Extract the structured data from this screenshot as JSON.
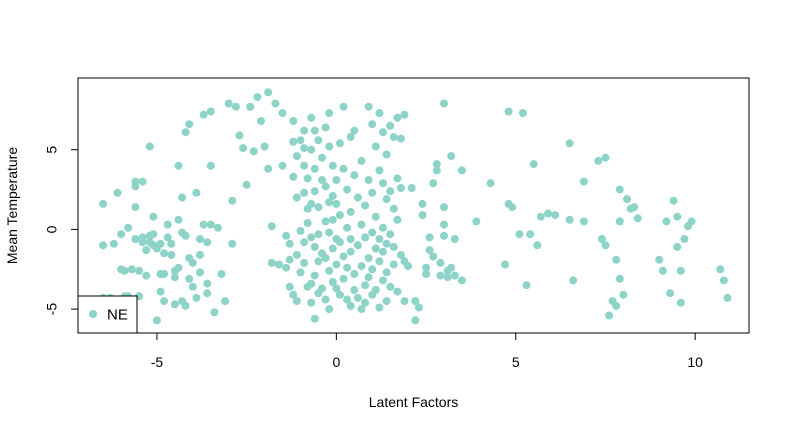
{
  "chart_data": {
    "type": "scatter",
    "title": "",
    "xlabel": "Latent Factors",
    "ylabel": "Mean Temperature",
    "xlim": [
      -7.2,
      11.5
    ],
    "ylim": [
      -6.5,
      9.5
    ],
    "xticks": [
      -5,
      0,
      5,
      10
    ],
    "yticks": [
      -5,
      0,
      5
    ],
    "grid": false,
    "legend": {
      "position": "bottom-left",
      "entries": [
        "NE"
      ]
    },
    "series": [
      {
        "name": "NE",
        "color": "#8dd3c7",
        "points": [
          [
            -6.5,
            1.6
          ],
          [
            -6.5,
            -1.0
          ],
          [
            -6.3,
            -4.3
          ],
          [
            -6.2,
            -0.9
          ],
          [
            -6.1,
            2.3
          ],
          [
            -6.0,
            -2.5
          ],
          [
            -6.0,
            -0.3
          ],
          [
            -5.9,
            -2.6
          ],
          [
            -5.8,
            0.1
          ],
          [
            -5.8,
            -4.2
          ],
          [
            -5.7,
            -2.5
          ],
          [
            -5.6,
            2.7
          ],
          [
            -5.6,
            3.0
          ],
          [
            -5.6,
            1.4
          ],
          [
            -5.6,
            -0.6
          ],
          [
            -5.5,
            -2.6
          ],
          [
            -5.5,
            -4.2
          ],
          [
            -5.4,
            3.0
          ],
          [
            -5.4,
            -0.8
          ],
          [
            -5.4,
            -0.5
          ],
          [
            -5.3,
            -1.3
          ],
          [
            -5.3,
            -2.9
          ],
          [
            -5.2,
            -0.4
          ],
          [
            -5.2,
            -0.8
          ],
          [
            -5.2,
            5.2
          ],
          [
            -5.1,
            0.8
          ],
          [
            -5.1,
            -0.3
          ],
          [
            -5.1,
            -1.0
          ],
          [
            -5.0,
            -1.2
          ],
          [
            -5.0,
            -5.7
          ],
          [
            -4.9,
            -0.9
          ],
          [
            -4.9,
            -2.8
          ],
          [
            -4.9,
            -3.9
          ],
          [
            -4.8,
            -1.5
          ],
          [
            -4.8,
            -2.8
          ],
          [
            -4.8,
            -4.5
          ],
          [
            -4.7,
            -0.5
          ],
          [
            -4.7,
            0.3
          ],
          [
            -4.6,
            -0.9
          ],
          [
            -4.6,
            -1.6
          ],
          [
            -4.5,
            -2.6
          ],
          [
            -4.5,
            -3.0
          ],
          [
            -4.5,
            -4.7
          ],
          [
            -4.4,
            4.0
          ],
          [
            -4.4,
            0.6
          ],
          [
            -4.4,
            -2.4
          ],
          [
            -4.3,
            -4.5
          ],
          [
            -4.3,
            2.0
          ],
          [
            -4.3,
            -0.2
          ],
          [
            -4.2,
            -4.8
          ],
          [
            -4.2,
            -0.4
          ],
          [
            -4.2,
            6.1
          ],
          [
            -4.1,
            6.6
          ],
          [
            -4.1,
            -1.8
          ],
          [
            -4.1,
            -3.1
          ],
          [
            -4.0,
            -2.1
          ],
          [
            -4.0,
            -3.6
          ],
          [
            -3.9,
            2.3
          ],
          [
            -3.9,
            -4.3
          ],
          [
            -3.8,
            -0.6
          ],
          [
            -3.8,
            -1.6
          ],
          [
            -3.8,
            -2.7
          ],
          [
            -3.7,
            7.2
          ],
          [
            -3.7,
            0.3
          ],
          [
            -3.6,
            -0.8
          ],
          [
            -3.6,
            -3.4
          ],
          [
            -3.6,
            -4.0
          ],
          [
            -3.5,
            7.4
          ],
          [
            -3.5,
            4.0
          ],
          [
            -3.5,
            0.3
          ],
          [
            -3.4,
            -5.2
          ],
          [
            -3.3,
            0.1
          ],
          [
            -3.2,
            -2.8
          ],
          [
            -3.1,
            -4.5
          ],
          [
            -3.0,
            7.9
          ],
          [
            -2.9,
            1.8
          ],
          [
            -2.9,
            -0.9
          ],
          [
            -2.8,
            7.7
          ],
          [
            -2.7,
            5.9
          ],
          [
            -2.6,
            5.1
          ],
          [
            -2.5,
            2.8
          ],
          [
            -2.4,
            7.7
          ],
          [
            -2.3,
            4.9
          ],
          [
            -2.2,
            8.3
          ],
          [
            -2.1,
            6.8
          ],
          [
            -2.0,
            5.2
          ],
          [
            -1.9,
            8.6
          ],
          [
            -1.9,
            3.8
          ],
          [
            -1.8,
            0.2
          ],
          [
            -1.8,
            -2.1
          ],
          [
            -1.7,
            7.9
          ],
          [
            -1.6,
            -2.2
          ],
          [
            -1.5,
            7.3
          ],
          [
            -1.5,
            4.0
          ],
          [
            -1.4,
            -0.4
          ],
          [
            -1.4,
            -2.4
          ],
          [
            -1.3,
            -0.9
          ],
          [
            -1.3,
            -1.9
          ],
          [
            -1.3,
            -3.6
          ],
          [
            -1.2,
            6.8
          ],
          [
            -1.2,
            5.5
          ],
          [
            -1.2,
            3.3
          ],
          [
            -1.2,
            -4.1
          ],
          [
            -1.1,
            4.6
          ],
          [
            -1.1,
            2.0
          ],
          [
            -1.1,
            -1.6
          ],
          [
            -1.1,
            -4.5
          ],
          [
            -1.0,
            5.6
          ],
          [
            -1.0,
            -0.1
          ],
          [
            -1.0,
            -2.7
          ],
          [
            -0.9,
            6.2
          ],
          [
            -0.9,
            5.1
          ],
          [
            -0.9,
            4.0
          ],
          [
            -0.9,
            2.3
          ],
          [
            -0.9,
            -0.8
          ],
          [
            -0.9,
            -2.1
          ],
          [
            -0.8,
            3.2
          ],
          [
            -0.8,
            1.3
          ],
          [
            -0.8,
            0.4
          ],
          [
            -0.8,
            -3.6
          ],
          [
            -0.7,
            7.0
          ],
          [
            -0.7,
            5.0
          ],
          [
            -0.7,
            1.6
          ],
          [
            -0.7,
            -0.5
          ],
          [
            -0.7,
            -3.4
          ],
          [
            -0.7,
            -4.6
          ],
          [
            -0.6,
            6.2
          ],
          [
            -0.6,
            3.8
          ],
          [
            -0.6,
            2.4
          ],
          [
            -0.6,
            -1.1
          ],
          [
            -0.6,
            -2.9
          ],
          [
            -0.6,
            -5.6
          ],
          [
            -0.5,
            5.6
          ],
          [
            -0.5,
            1.4
          ],
          [
            -0.5,
            -0.3
          ],
          [
            -0.5,
            -2.0
          ],
          [
            -0.5,
            -4.0
          ],
          [
            -0.4,
            4.5
          ],
          [
            -0.4,
            3.1
          ],
          [
            -0.4,
            -1.5
          ],
          [
            -0.4,
            -3.7
          ],
          [
            -0.3,
            6.4
          ],
          [
            -0.3,
            2.7
          ],
          [
            -0.3,
            0.5
          ],
          [
            -0.3,
            -1.8
          ],
          [
            -0.3,
            -4.4
          ],
          [
            -0.2,
            7.3
          ],
          [
            -0.2,
            5.2
          ],
          [
            -0.2,
            1.7
          ],
          [
            -0.2,
            -0.2
          ],
          [
            -0.2,
            -2.6
          ],
          [
            -0.2,
            -5.0
          ],
          [
            -0.1,
            4.0
          ],
          [
            -0.1,
            2.1
          ],
          [
            -0.1,
            0.6
          ],
          [
            -0.1,
            -1.2
          ],
          [
            -0.1,
            -3.3
          ],
          [
            0.0,
            -2.2
          ],
          [
            0.0,
            -0.6
          ],
          [
            0.0,
            1.6
          ],
          [
            0.0,
            3.1
          ],
          [
            0.0,
            -3.7
          ],
          [
            0.1,
            5.4
          ],
          [
            0.1,
            0.9
          ],
          [
            0.1,
            -0.8
          ],
          [
            0.1,
            -4.1
          ],
          [
            0.2,
            7.7
          ],
          [
            0.2,
            3.8
          ],
          [
            0.2,
            -1.7
          ],
          [
            0.2,
            -3.1
          ],
          [
            0.3,
            2.5
          ],
          [
            0.3,
            0.1
          ],
          [
            0.3,
            -2.4
          ],
          [
            0.3,
            -4.4
          ],
          [
            0.4,
            5.8
          ],
          [
            0.4,
            1.1
          ],
          [
            0.4,
            -0.6
          ],
          [
            0.4,
            -1.4
          ],
          [
            0.4,
            -4.8
          ],
          [
            0.5,
            6.2
          ],
          [
            0.5,
            3.4
          ],
          [
            0.5,
            -2.8
          ],
          [
            0.5,
            -3.8
          ],
          [
            0.6,
            2.0
          ],
          [
            0.6,
            -1.0
          ],
          [
            0.6,
            -4.3
          ],
          [
            0.7,
            4.3
          ],
          [
            0.7,
            0.3
          ],
          [
            0.7,
            -2.3
          ],
          [
            0.7,
            -5.0
          ],
          [
            0.8,
            1.5
          ],
          [
            0.8,
            -0.5
          ],
          [
            0.8,
            -3.5
          ],
          [
            0.8,
            -4.6
          ],
          [
            0.9,
            7.7
          ],
          [
            0.9,
            3.1
          ],
          [
            0.9,
            -1.8
          ],
          [
            0.9,
            -3.0
          ],
          [
            1.0,
            6.6
          ],
          [
            1.0,
            2.3
          ],
          [
            1.0,
            -0.2
          ],
          [
            1.0,
            -2.5
          ],
          [
            1.0,
            -4.1
          ],
          [
            1.1,
            5.2
          ],
          [
            1.1,
            0.8
          ],
          [
            1.1,
            -1.2
          ],
          [
            1.1,
            -3.8
          ],
          [
            1.2,
            7.3
          ],
          [
            1.2,
            3.7
          ],
          [
            1.2,
            -0.6
          ],
          [
            1.2,
            -2.0
          ],
          [
            1.2,
            -4.9
          ],
          [
            1.3,
            6.1
          ],
          [
            1.3,
            2.9
          ],
          [
            1.3,
            0.1
          ],
          [
            1.3,
            -1.4
          ],
          [
            1.3,
            -3.2
          ],
          [
            1.4,
            4.7
          ],
          [
            1.4,
            1.9
          ],
          [
            1.4,
            -0.9
          ],
          [
            1.4,
            -2.7
          ],
          [
            1.4,
            -4.5
          ],
          [
            1.5,
            6.5
          ],
          [
            1.5,
            2.4
          ],
          [
            1.5,
            -0.3
          ],
          [
            1.5,
            -3.6
          ],
          [
            1.6,
            5.8
          ],
          [
            1.6,
            1.3
          ],
          [
            1.6,
            -1.1
          ],
          [
            1.6,
            -2.2
          ],
          [
            1.7,
            7.0
          ],
          [
            1.7,
            3.2
          ],
          [
            1.7,
            0.6
          ],
          [
            1.7,
            -3.9
          ],
          [
            1.8,
            5.7
          ],
          [
            1.8,
            2.6
          ],
          [
            1.8,
            -1.6
          ],
          [
            1.9,
            7.2
          ],
          [
            1.9,
            -2.0
          ],
          [
            1.9,
            -4.5
          ],
          [
            2.0,
            -2.3
          ],
          [
            2.1,
            2.6
          ],
          [
            2.2,
            -4.5
          ],
          [
            2.2,
            -5.7
          ],
          [
            2.3,
            -4.9
          ],
          [
            2.4,
            1.6
          ],
          [
            2.4,
            0.9
          ],
          [
            2.5,
            -2.4
          ],
          [
            2.5,
            -2.8
          ],
          [
            2.6,
            -0.5
          ],
          [
            2.6,
            -1.3
          ],
          [
            2.7,
            2.9
          ],
          [
            2.7,
            -1.7
          ],
          [
            2.8,
            3.7
          ],
          [
            2.8,
            4.1
          ],
          [
            2.9,
            -2.1
          ],
          [
            2.9,
            -2.9
          ],
          [
            3.0,
            7.9
          ],
          [
            3.0,
            0.3
          ],
          [
            3.0,
            1.4
          ],
          [
            3.0,
            -0.4
          ],
          [
            3.1,
            -2.6
          ],
          [
            3.1,
            -3.0
          ],
          [
            3.2,
            4.6
          ],
          [
            3.2,
            -2.4
          ],
          [
            3.3,
            -2.9
          ],
          [
            3.3,
            -0.6
          ],
          [
            3.5,
            3.7
          ],
          [
            3.5,
            -3.2
          ],
          [
            3.9,
            0.5
          ],
          [
            4.3,
            2.9
          ],
          [
            4.7,
            -2.2
          ],
          [
            4.8,
            7.4
          ],
          [
            4.8,
            1.6
          ],
          [
            4.9,
            1.4
          ],
          [
            5.1,
            -0.3
          ],
          [
            5.2,
            7.3
          ],
          [
            5.3,
            -3.5
          ],
          [
            5.4,
            -0.3
          ],
          [
            5.5,
            4.1
          ],
          [
            5.6,
            -1.0
          ],
          [
            5.7,
            0.8
          ],
          [
            5.9,
            1.0
          ],
          [
            6.1,
            0.9
          ],
          [
            6.5,
            5.4
          ],
          [
            6.5,
            0.6
          ],
          [
            6.6,
            -3.2
          ],
          [
            6.9,
            3.0
          ],
          [
            6.9,
            0.5
          ],
          [
            7.3,
            4.3
          ],
          [
            7.4,
            -0.6
          ],
          [
            7.5,
            4.5
          ],
          [
            7.5,
            -1.0
          ],
          [
            7.6,
            -5.4
          ],
          [
            7.7,
            -4.5
          ],
          [
            7.8,
            -4.8
          ],
          [
            7.8,
            -1.9
          ],
          [
            7.9,
            -3.1
          ],
          [
            7.9,
            0.5
          ],
          [
            7.9,
            2.5
          ],
          [
            8.0,
            -4.1
          ],
          [
            8.1,
            1.9
          ],
          [
            8.2,
            1.3
          ],
          [
            8.3,
            1.4
          ],
          [
            8.4,
            0.7
          ],
          [
            9.0,
            -1.9
          ],
          [
            9.1,
            -2.6
          ],
          [
            9.2,
            0.5
          ],
          [
            9.3,
            -4.0
          ],
          [
            9.4,
            1.8
          ],
          [
            9.5,
            0.8
          ],
          [
            9.5,
            -1.1
          ],
          [
            9.6,
            -2.6
          ],
          [
            9.6,
            -4.6
          ],
          [
            9.7,
            -0.6
          ],
          [
            9.8,
            0.2
          ],
          [
            9.9,
            0.5
          ],
          [
            10.7,
            -2.5
          ],
          [
            10.8,
            -3.2
          ],
          [
            10.9,
            -4.3
          ],
          [
            -6.5,
            -4.3
          ],
          [
            -5.9,
            -4.2
          ],
          [
            -5.5,
            -4.2
          ]
        ]
      }
    ]
  }
}
